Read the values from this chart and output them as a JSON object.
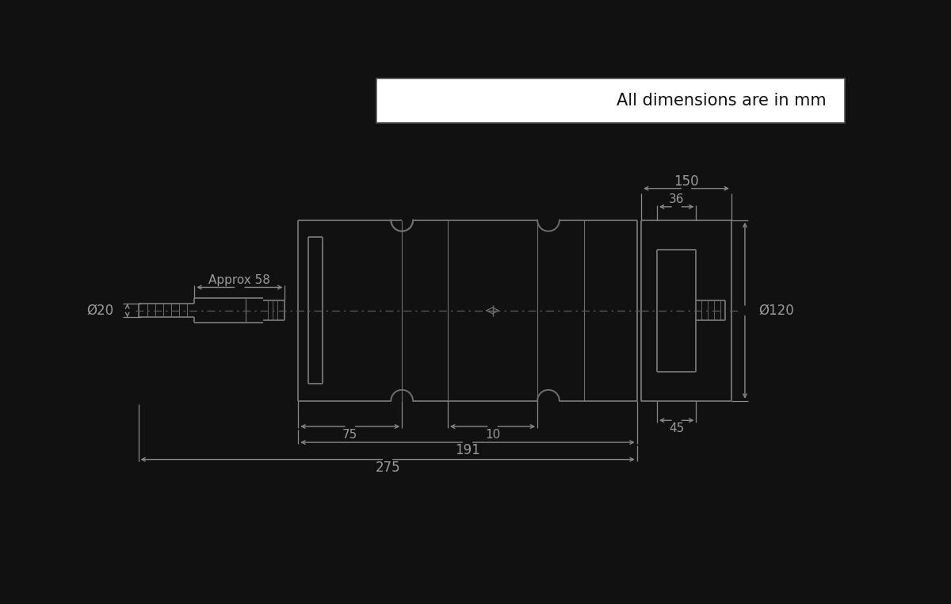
{
  "bg_color": "#111111",
  "line_color": "#6e6e6e",
  "text_color": "#9a9a9a",
  "dim_color": "#8a8a8a",
  "title_text": "All dimensions are in mm",
  "title_box_bg": "#ffffff",
  "title_box_text": "#111111",
  "dim_20": "Ø20",
  "dim_120": "Ø120",
  "dim_approx58": "Approx 58",
  "dim_150": "150",
  "dim_36": "36",
  "dim_45": "45",
  "dim_75": "75",
  "dim_10": "10",
  "dim_191": "191",
  "dim_275": "275"
}
